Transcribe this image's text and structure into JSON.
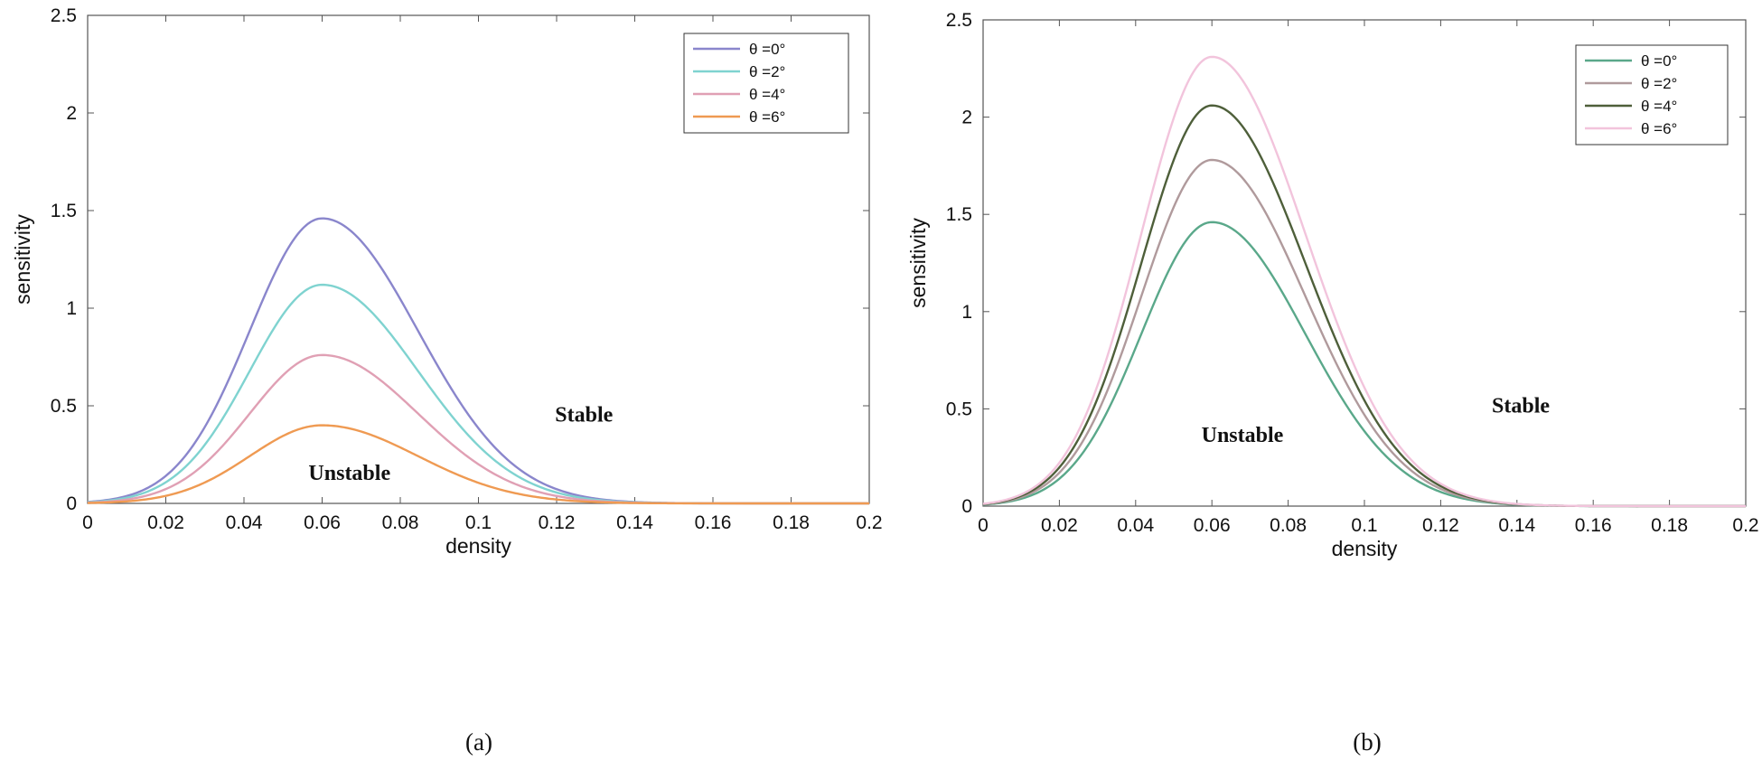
{
  "chart_data": [
    {
      "id": "a",
      "type": "line",
      "caption": "(a)",
      "xlabel": "density",
      "ylabel": "sensitivity",
      "xlim": [
        0,
        0.2
      ],
      "ylim": [
        0,
        2.5
      ],
      "xticks": [
        "0",
        "0.02",
        "0.04",
        "0.06",
        "0.08",
        "0.1",
        "0.12",
        "0.14",
        "0.16",
        "0.18",
        "0.2"
      ],
      "yticks": [
        "0",
        "0.5",
        "1",
        "1.5",
        "2",
        "2.5"
      ],
      "grid": false,
      "legend_position": "top-right",
      "peak_x": 0.06,
      "annotations": [
        {
          "text": "Stable",
          "x": 0.127,
          "y": 0.42
        },
        {
          "text": "Unstable",
          "x": 0.067,
          "y": 0.12
        }
      ],
      "series": [
        {
          "theta": "0",
          "name": "θ =0°",
          "color": "#8a86cc",
          "peak": 1.46
        },
        {
          "theta": "2",
          "name": "θ =2°",
          "color": "#7fd3d0",
          "peak": 1.12
        },
        {
          "theta": "4",
          "name": "θ =4°",
          "color": "#e0a0b4",
          "peak": 0.76
        },
        {
          "theta": "6",
          "name": "θ =6°",
          "color": "#ef9a52",
          "peak": 0.4
        }
      ]
    },
    {
      "id": "b",
      "type": "line",
      "caption": "(b)",
      "xlabel": "density",
      "ylabel": "sensitivity",
      "xlim": [
        0,
        0.2
      ],
      "ylim": [
        0,
        2.5
      ],
      "xticks": [
        "0",
        "0.02",
        "0.04",
        "0.06",
        "0.08",
        "0.1",
        "0.12",
        "0.14",
        "0.16",
        "0.18",
        "0.2"
      ],
      "yticks": [
        "0",
        "0.5",
        "1",
        "1.5",
        "2",
        "2.5"
      ],
      "grid": false,
      "legend_position": "top-right",
      "peak_x": 0.06,
      "annotations": [
        {
          "text": "Stable",
          "x": 0.141,
          "y": 0.48
        },
        {
          "text": "Unstable",
          "x": 0.068,
          "y": 0.33
        }
      ],
      "series": [
        {
          "theta": "0",
          "name": "θ =0°",
          "color": "#5aa88a",
          "peak": 1.46
        },
        {
          "theta": "2",
          "name": "θ =2°",
          "color": "#b09a9c",
          "peak": 1.78
        },
        {
          "theta": "4",
          "name": "θ =4°",
          "color": "#4e5f3a",
          "peak": 2.06
        },
        {
          "theta": "6",
          "name": "θ =6°",
          "color": "#f2c4dc",
          "peak": 2.31
        }
      ]
    }
  ]
}
